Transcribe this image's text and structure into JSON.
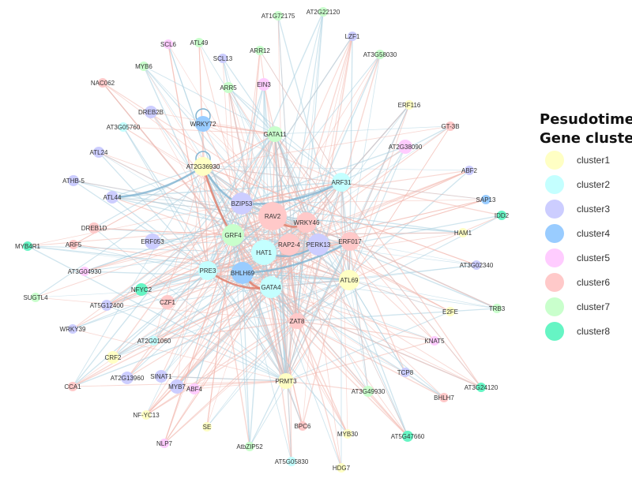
{
  "legend": {
    "title_line1": "Pesudotime",
    "title_line2": "Gene cluster",
    "items": [
      {
        "label": "cluster1",
        "color": "#ffffc4"
      },
      {
        "label": "cluster2",
        "color": "#c4ffff"
      },
      {
        "label": "cluster3",
        "color": "#cccdff"
      },
      {
        "label": "cluster4",
        "color": "#99ccff"
      },
      {
        "label": "cluster5",
        "color": "#ffccff"
      },
      {
        "label": "cluster6",
        "color": "#ffc9c9"
      },
      {
        "label": "cluster7",
        "color": "#c9ffcc"
      },
      {
        "label": "cluster8",
        "color": "#66f5c4"
      }
    ]
  },
  "edge_colors": {
    "positive": "#f2b8ae",
    "negative": "#a9cfe0",
    "strong_positive": "#e07a66",
    "strong_negative": "#7fb3d1"
  },
  "nodes": [
    {
      "label": "AT1G72175",
      "cluster": 7
    },
    {
      "label": "AT2G22120",
      "cluster": 7
    },
    {
      "label": "LZF1",
      "cluster": 3
    },
    {
      "label": "AT3G58030",
      "cluster": 7
    },
    {
      "label": "ARR12",
      "cluster": 7
    },
    {
      "label": "SCL6",
      "cluster": 5
    },
    {
      "label": "ATL49",
      "cluster": 7
    },
    {
      "label": "SCL13",
      "cluster": 3
    },
    {
      "label": "MYB6",
      "cluster": 7
    },
    {
      "label": "NAC062",
      "cluster": 6
    },
    {
      "label": "ARR5",
      "cluster": 7
    },
    {
      "label": "EIN3",
      "cluster": 5
    },
    {
      "label": "DREB2B",
      "cluster": 3
    },
    {
      "label": "WRKY72",
      "cluster": 4
    },
    {
      "label": "AT3G05760",
      "cluster": 2
    },
    {
      "label": "GATA11",
      "cluster": 7
    },
    {
      "label": "ERF116",
      "cluster": 1
    },
    {
      "label": "GT-3B",
      "cluster": 6
    },
    {
      "label": "AT2G38090",
      "cluster": 5
    },
    {
      "label": "ATL24",
      "cluster": 3
    },
    {
      "label": "AT2G36930",
      "cluster": 1
    },
    {
      "label": "ATHB-5",
      "cluster": 3
    },
    {
      "label": "ABF2",
      "cluster": 3
    },
    {
      "label": "ARF31",
      "cluster": 2
    },
    {
      "label": "ATL44",
      "cluster": 3
    },
    {
      "label": "BZIP53",
      "cluster": 3
    },
    {
      "label": "SAP13",
      "cluster": 4
    },
    {
      "label": "IDD2",
      "cluster": 8
    },
    {
      "label": "RAV2",
      "cluster": 6
    },
    {
      "label": "WRKY46",
      "cluster": 6
    },
    {
      "label": "DREB1D",
      "cluster": 6
    },
    {
      "label": "HAM1",
      "cluster": 1
    },
    {
      "label": "GRF4",
      "cluster": 7
    },
    {
      "label": "ARF5",
      "cluster": 6
    },
    {
      "label": "MYB4R1",
      "cluster": 8
    },
    {
      "label": "ERF053",
      "cluster": 3
    },
    {
      "label": "HAT1",
      "cluster": 2
    },
    {
      "label": "RAP2-4",
      "cluster": 6
    },
    {
      "label": "PERK13",
      "cluster": 3
    },
    {
      "label": "ERF017",
      "cluster": 6
    },
    {
      "label": "AT3G04930",
      "cluster": 5
    },
    {
      "label": "PRE3",
      "cluster": 2
    },
    {
      "label": "BHLH69",
      "cluster": 4
    },
    {
      "label": "AT3G02340",
      "cluster": 3
    },
    {
      "label": "NFYC2",
      "cluster": 8
    },
    {
      "label": "GATA4",
      "cluster": 2
    },
    {
      "label": "ATL69",
      "cluster": 1
    },
    {
      "label": "SUGTL4",
      "cluster": 7
    },
    {
      "label": "CZF1",
      "cluster": 6
    },
    {
      "label": "AT5G12400",
      "cluster": 3
    },
    {
      "label": "TRB3",
      "cluster": 7
    },
    {
      "label": "E2FE",
      "cluster": 1
    },
    {
      "label": "ZAT8",
      "cluster": 6
    },
    {
      "label": "WRKY39",
      "cluster": 3
    },
    {
      "label": "KNAT5",
      "cluster": 5
    },
    {
      "label": "AT2G01060",
      "cluster": 2
    },
    {
      "label": "CRF2",
      "cluster": 1
    },
    {
      "label": "TCP8",
      "cluster": 3
    },
    {
      "label": "AT2G13960",
      "cluster": 3
    },
    {
      "label": "SINAT1",
      "cluster": 3
    },
    {
      "label": "PRMT3",
      "cluster": 1
    },
    {
      "label": "MYB7",
      "cluster": 3
    },
    {
      "label": "ABF4",
      "cluster": 5
    },
    {
      "label": "AT3G49930",
      "cluster": 7
    },
    {
      "label": "BHLH7",
      "cluster": 6
    },
    {
      "label": "AT3G24120",
      "cluster": 8
    },
    {
      "label": "CCA1",
      "cluster": 6
    },
    {
      "label": "NF-YC13",
      "cluster": 1
    },
    {
      "label": "SE",
      "cluster": 1
    },
    {
      "label": "BPC6",
      "cluster": 6
    },
    {
      "label": "MYB30",
      "cluster": 1
    },
    {
      "label": "AT5G47660",
      "cluster": 8
    },
    {
      "label": "NLP7",
      "cluster": 5
    },
    {
      "label": "AtbZIP52",
      "cluster": 7
    },
    {
      "label": "AT5G05830",
      "cluster": 2
    },
    {
      "label": "HDG7",
      "cluster": 1
    }
  ]
}
